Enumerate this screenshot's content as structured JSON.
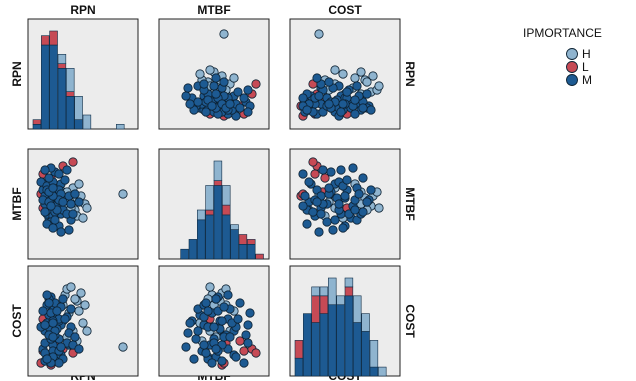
{
  "chart_data": {
    "type": "scatter-matrix",
    "variables": [
      "RPN",
      "MTBF",
      "COST"
    ],
    "diagonal": "stacked histogram",
    "legend": {
      "title": "IPMORTANCE",
      "placement": "top-right",
      "entries": [
        {
          "name": "H",
          "color": "#8fb4cf"
        },
        {
          "name": "L",
          "color": "#c64a55"
        },
        {
          "name": "M",
          "color": "#1d5a92"
        }
      ]
    },
    "colors": {
      "H": "#8fb4cf",
      "L": "#c64a55",
      "M": "#1d5a92",
      "panel": "#ececec",
      "border": "#222222"
    },
    "ranges": {
      "RPN": [
        0,
        100
      ],
      "MTBF": [
        0,
        100
      ],
      "COST": [
        0,
        100
      ]
    },
    "points": [
      [
        24,
        52,
        14,
        "M"
      ],
      [
        12,
        70,
        40,
        "M"
      ],
      [
        16,
        60,
        36,
        "M"
      ],
      [
        20,
        46,
        26,
        "M"
      ],
      [
        10,
        64,
        22,
        "M"
      ],
      [
        18,
        76,
        30,
        "L"
      ],
      [
        26,
        50,
        32,
        "M"
      ],
      [
        14,
        44,
        14,
        "M"
      ],
      [
        30,
        56,
        50,
        "M"
      ],
      [
        8,
        72,
        44,
        "M"
      ],
      [
        22,
        82,
        36,
        "M"
      ],
      [
        16,
        36,
        56,
        "M"
      ],
      [
        28,
        40,
        46,
        "M"
      ],
      [
        12,
        58,
        10,
        "M"
      ],
      [
        34,
        52,
        34,
        "H"
      ],
      [
        40,
        66,
        40,
        "H"
      ],
      [
        46,
        70,
        60,
        "H"
      ],
      [
        36,
        48,
        58,
        "H"
      ],
      [
        30,
        62,
        66,
        "H"
      ],
      [
        44,
        56,
        70,
        "H"
      ],
      [
        38,
        34,
        62,
        "M"
      ],
      [
        26,
        28,
        50,
        "M"
      ],
      [
        20,
        66,
        62,
        "M"
      ],
      [
        14,
        40,
        66,
        "M"
      ],
      [
        18,
        54,
        74,
        "M"
      ],
      [
        24,
        62,
        28,
        "L"
      ],
      [
        10,
        80,
        20,
        "L"
      ],
      [
        18,
        58,
        6,
        "L"
      ],
      [
        8,
        60,
        8,
        "L"
      ],
      [
        32,
        48,
        76,
        "H"
      ],
      [
        42,
        44,
        72,
        "H"
      ],
      [
        48,
        58,
        78,
        "H"
      ],
      [
        52,
        50,
        66,
        "H"
      ],
      [
        22,
        48,
        58,
        "M"
      ],
      [
        16,
        44,
        44,
        "M"
      ],
      [
        20,
        38,
        20,
        "M"
      ],
      [
        28,
        70,
        16,
        "M"
      ],
      [
        12,
        50,
        28,
        "M"
      ],
      [
        18,
        32,
        32,
        "M"
      ],
      [
        24,
        56,
        42,
        "M"
      ],
      [
        26,
        64,
        52,
        "M"
      ],
      [
        14,
        68,
        48,
        "M"
      ],
      [
        20,
        72,
        14,
        "M"
      ],
      [
        30,
        44,
        12,
        "M"
      ],
      [
        36,
        58,
        26,
        "M"
      ],
      [
        10,
        54,
        60,
        "M"
      ],
      [
        22,
        42,
        68,
        "M"
      ],
      [
        16,
        52,
        72,
        "M"
      ],
      [
        28,
        60,
        64,
        "M"
      ],
      [
        34,
        40,
        54,
        "M"
      ],
      [
        26,
        54,
        20,
        "M"
      ],
      [
        18,
        86,
        58,
        "M"
      ],
      [
        14,
        64,
        76,
        "M"
      ],
      [
        20,
        58,
        50,
        "M"
      ],
      [
        38,
        50,
        44,
        "M"
      ],
      [
        22,
        34,
        40,
        "M"
      ],
      [
        12,
        42,
        18,
        "M"
      ],
      [
        30,
        52,
        72,
        "M"
      ],
      [
        24,
        44,
        60,
        "M"
      ],
      [
        16,
        62,
        36,
        "M"
      ],
      [
        10,
        46,
        52,
        "L"
      ],
      [
        30,
        88,
        22,
        "L"
      ],
      [
        40,
        92,
        18,
        "L"
      ],
      [
        34,
        84,
        28,
        "M"
      ],
      [
        26,
        80,
        8,
        "M"
      ],
      [
        18,
        48,
        8,
        "M"
      ],
      [
        14,
        30,
        12,
        "M"
      ],
      [
        20,
        26,
        48,
        "M"
      ],
      [
        28,
        22,
        24,
        "M"
      ],
      [
        36,
        24,
        38,
        "M"
      ],
      [
        44,
        38,
        30,
        "H"
      ],
      [
        50,
        36,
        48,
        "H"
      ],
      [
        54,
        46,
        40,
        "H"
      ],
      [
        34,
        62,
        82,
        "H"
      ],
      [
        38,
        46,
        84,
        "H"
      ],
      [
        40,
        40,
        26,
        "M"
      ],
      [
        42,
        60,
        34,
        "M"
      ],
      [
        46,
        52,
        22,
        "M"
      ],
      [
        90,
        60,
        24,
        "H"
      ],
      [
        32,
        74,
        52,
        "M"
      ],
      [
        16,
        76,
        68,
        "M"
      ],
      [
        12,
        84,
        46,
        "M"
      ],
      [
        20,
        66,
        34,
        "M"
      ]
    ]
  }
}
